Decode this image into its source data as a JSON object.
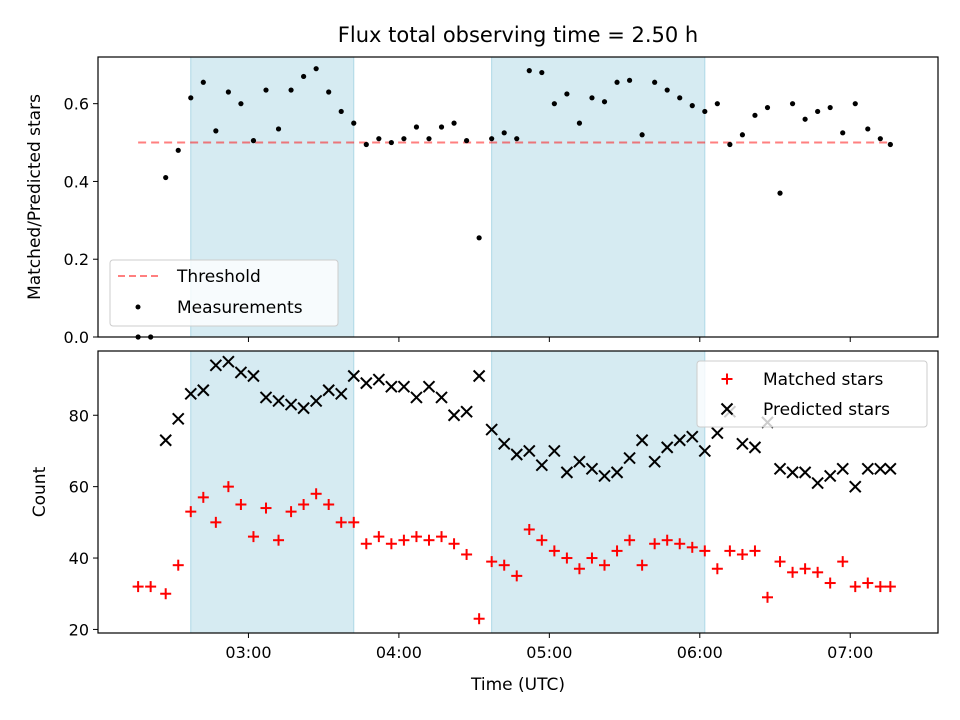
{
  "chart_data": [
    {
      "type": "scatter",
      "title": "Flux total observing time = 2.50 h",
      "xlabel": "",
      "ylabel": "Matched/Predicted stars",
      "ylim": [
        0,
        0.72
      ],
      "yticks": [
        "0.0",
        "0.2",
        "0.4",
        "0.6"
      ],
      "ytick_values": [
        0,
        0.2,
        0.4,
        0.6
      ],
      "threshold": 0.5,
      "legend_position": "lower-left",
      "legend": [
        "Threshold",
        "Measurements"
      ],
      "series": [
        {
          "name": "Measurements",
          "x": [
            "02:16",
            "02:21",
            "02:27",
            "02:32",
            "02:37",
            "02:42",
            "02:47",
            "02:52",
            "02:57",
            "03:02",
            "03:07",
            "03:12",
            "03:17",
            "03:22",
            "03:27",
            "03:32",
            "03:37",
            "03:42",
            "03:47",
            "03:52",
            "03:57",
            "04:02",
            "04:07",
            "04:12",
            "04:17",
            "04:22",
            "04:27",
            "04:32",
            "04:37",
            "04:42",
            "04:47",
            "04:52",
            "04:57",
            "05:02",
            "05:07",
            "05:12",
            "05:17",
            "05:22",
            "05:27",
            "05:32",
            "05:37",
            "05:42",
            "05:47",
            "05:52",
            "05:57",
            "06:02",
            "06:07",
            "06:12",
            "06:17",
            "06:22",
            "06:27",
            "06:32",
            "06:37",
            "06:42",
            "06:47",
            "06:52",
            "06:57",
            "07:02",
            "07:07",
            "07:12",
            "07:16"
          ],
          "y": [
            0.0,
            0.0,
            0.41,
            0.48,
            0.615,
            0.655,
            0.53,
            0.63,
            0.6,
            0.505,
            0.635,
            0.535,
            0.635,
            0.67,
            0.69,
            0.63,
            0.58,
            0.55,
            0.495,
            0.51,
            0.5,
            0.51,
            0.54,
            0.51,
            0.54,
            0.55,
            0.505,
            0.255,
            0.51,
            0.525,
            0.51,
            0.685,
            0.68,
            0.6,
            0.625,
            0.55,
            0.615,
            0.605,
            0.655,
            0.66,
            0.52,
            0.655,
            0.635,
            0.615,
            0.595,
            0.58,
            0.6,
            0.495,
            0.52,
            0.57,
            0.59,
            0.37,
            0.6,
            0.56,
            0.58,
            0.59,
            0.525,
            0.6,
            0.535,
            0.51,
            0.495
          ]
        }
      ]
    },
    {
      "type": "scatter",
      "title": "",
      "xlabel": "Time (UTC)",
      "ylabel": "Count",
      "ylim": [
        19,
        98
      ],
      "yticks": [
        "20",
        "40",
        "60",
        "80"
      ],
      "ytick_values": [
        20,
        40,
        60,
        80
      ],
      "xticks": [
        "03:00",
        "04:00",
        "05:00",
        "06:00",
        "07:00"
      ],
      "legend_position": "top-right",
      "series": [
        {
          "name": "Matched stars",
          "color": "#ff0000",
          "x": [
            "02:16",
            "02:21",
            "02:27",
            "02:32",
            "02:37",
            "02:42",
            "02:47",
            "02:52",
            "02:57",
            "03:02",
            "03:07",
            "03:12",
            "03:17",
            "03:22",
            "03:27",
            "03:32",
            "03:37",
            "03:42",
            "03:47",
            "03:52",
            "03:57",
            "04:02",
            "04:07",
            "04:12",
            "04:17",
            "04:22",
            "04:27",
            "04:32",
            "04:37",
            "04:42",
            "04:47",
            "04:52",
            "04:57",
            "05:02",
            "05:07",
            "05:12",
            "05:17",
            "05:22",
            "05:27",
            "05:32",
            "05:37",
            "05:42",
            "05:47",
            "05:52",
            "05:57",
            "06:02",
            "06:07",
            "06:12",
            "06:17",
            "06:22",
            "06:27",
            "06:32",
            "06:37",
            "06:42",
            "06:47",
            "06:52",
            "06:57",
            "07:02",
            "07:07",
            "07:12",
            "07:16"
          ],
          "y": [
            32,
            32,
            30,
            38,
            53,
            57,
            50,
            60,
            55,
            46,
            54,
            45,
            53,
            55,
            58,
            55,
            50,
            50,
            44,
            46,
            44,
            45,
            46,
            45,
            46,
            44,
            41,
            23,
            39,
            38,
            35,
            48,
            45,
            42,
            40,
            37,
            40,
            38,
            42,
            45,
            38,
            44,
            45,
            44,
            43,
            42,
            37,
            42,
            41,
            42,
            29,
            39,
            36,
            37,
            36,
            33,
            39,
            32,
            33,
            32,
            32
          ]
        },
        {
          "name": "Predicted stars",
          "color": "#000000",
          "x": [
            "02:27",
            "02:32",
            "02:37",
            "02:42",
            "02:47",
            "02:52",
            "02:57",
            "03:02",
            "03:07",
            "03:12",
            "03:17",
            "03:22",
            "03:27",
            "03:32",
            "03:37",
            "03:42",
            "03:47",
            "03:52",
            "03:57",
            "04:02",
            "04:07",
            "04:12",
            "04:17",
            "04:22",
            "04:27",
            "04:32",
            "04:37",
            "04:42",
            "04:47",
            "04:52",
            "04:57",
            "05:02",
            "05:07",
            "05:12",
            "05:17",
            "05:22",
            "05:27",
            "05:32",
            "05:37",
            "05:42",
            "05:47",
            "05:52",
            "05:57",
            "06:02",
            "06:07",
            "06:12",
            "06:17",
            "06:22",
            "06:27",
            "06:32",
            "06:37",
            "06:42",
            "06:47",
            "06:52",
            "06:57",
            "07:02",
            "07:07",
            "07:12",
            "07:16"
          ],
          "y": [
            73,
            79,
            86,
            87,
            94,
            95,
            92,
            91,
            85,
            84,
            83,
            82,
            84,
            87,
            86,
            91,
            89,
            90,
            88,
            88,
            85,
            88,
            85,
            80,
            81,
            91,
            76,
            72,
            69,
            70,
            66,
            70,
            64,
            67,
            65,
            63,
            64,
            68,
            73,
            67,
            71,
            73,
            74,
            70,
            75,
            81,
            72,
            71,
            78,
            65,
            64,
            64,
            61,
            63,
            65,
            60,
            65,
            65,
            65
          ]
        }
      ]
    }
  ],
  "observing_windows": [
    [
      "02:37",
      "03:42"
    ],
    [
      "04:37",
      "06:02"
    ]
  ],
  "colors": {
    "window": "#add8e6",
    "threshold": "#ff0000",
    "measurements": "#000000",
    "matched": "#ff0000",
    "predicted": "#000000"
  }
}
